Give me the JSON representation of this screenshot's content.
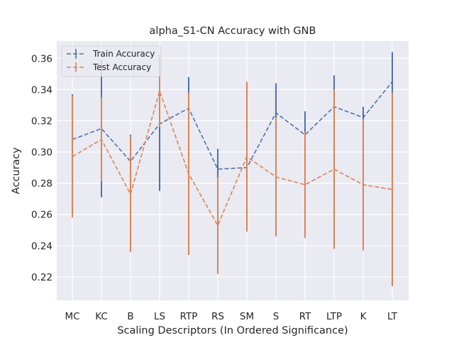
{
  "chart_data": {
    "type": "line",
    "title": "alpha_S1-CN Accuracy with GNB",
    "xlabel": "Scaling Descriptors (In Ordered Significance)",
    "ylabel": "Accuracy",
    "categories": [
      "MC",
      "KC",
      "B",
      "LS",
      "RTP",
      "RS",
      "SM",
      "S",
      "RT",
      "LTP",
      "K",
      "LT"
    ],
    "ylim": [
      0.205,
      0.371
    ],
    "yticks": [
      0.22,
      0.24,
      0.26,
      0.28,
      0.3,
      0.32,
      0.34,
      0.36
    ],
    "ytick_labels": [
      "0.22",
      "0.24",
      "0.26",
      "0.28",
      "0.30",
      "0.32",
      "0.34",
      "0.36"
    ],
    "grid": true,
    "legend_position": "top-left",
    "series": [
      {
        "name": "Train Accuracy",
        "color": "#4c72b0",
        "values": [
          0.308,
          0.315,
          0.294,
          0.318,
          0.328,
          0.289,
          0.29,
          0.325,
          0.311,
          0.329,
          0.322,
          0.345
        ],
        "errors": [
          0.029,
          0.044,
          0.017,
          0.043,
          0.02,
          0.013,
          0.007,
          0.019,
          0.015,
          0.02,
          0.007,
          0.019
        ]
      },
      {
        "name": "Test Accuracy",
        "color": "#dd8452",
        "values": [
          0.297,
          0.308,
          0.273,
          0.339,
          0.286,
          0.253,
          0.297,
          0.284,
          0.279,
          0.289,
          0.279,
          0.276
        ],
        "errors": [
          0.039,
          0.027,
          0.037,
          0.023,
          0.052,
          0.031,
          0.048,
          0.038,
          0.034,
          0.051,
          0.042,
          0.062
        ]
      }
    ]
  }
}
